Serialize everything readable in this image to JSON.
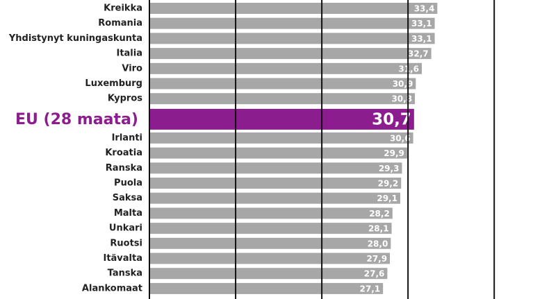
{
  "chart_data": {
    "type": "hbar",
    "categories": [
      "Kreikka",
      "Romania",
      "Yhdistynyt kuningaskunta",
      "Italia",
      "Viro",
      "Luxemburg",
      "Kypros",
      "EU (28 maata)",
      "Irlanti",
      "Kroatia",
      "Ranska",
      "Puola",
      "Saksa",
      "Malta",
      "Unkari",
      "Ruotsi",
      "Itävalta",
      "Tanska",
      "Alankomaat"
    ],
    "values": [
      33.4,
      33.1,
      33.1,
      32.7,
      31.6,
      30.9,
      30.8,
      30.7,
      30.6,
      29.9,
      29.3,
      29.2,
      29.1,
      28.2,
      28.1,
      28.0,
      27.9,
      27.6,
      27.1
    ],
    "value_labels": [
      "33,4",
      "33,1",
      "33,1",
      "32,7",
      "31,6",
      "30,9",
      "30,8",
      "30,7",
      "30,6",
      "29,9",
      "29,3",
      "29,2",
      "29,1",
      "28,2",
      "28,1",
      "28,0",
      "27,9",
      "27,6",
      "27,1"
    ],
    "color": "#a7a7a7",
    "highlight_index": 7,
    "highlight_color": "#8c1d8e",
    "xlim": [
      0,
      44.5
    ],
    "xticks": [
      0,
      10,
      20,
      30,
      40
    ],
    "grid": true
  }
}
